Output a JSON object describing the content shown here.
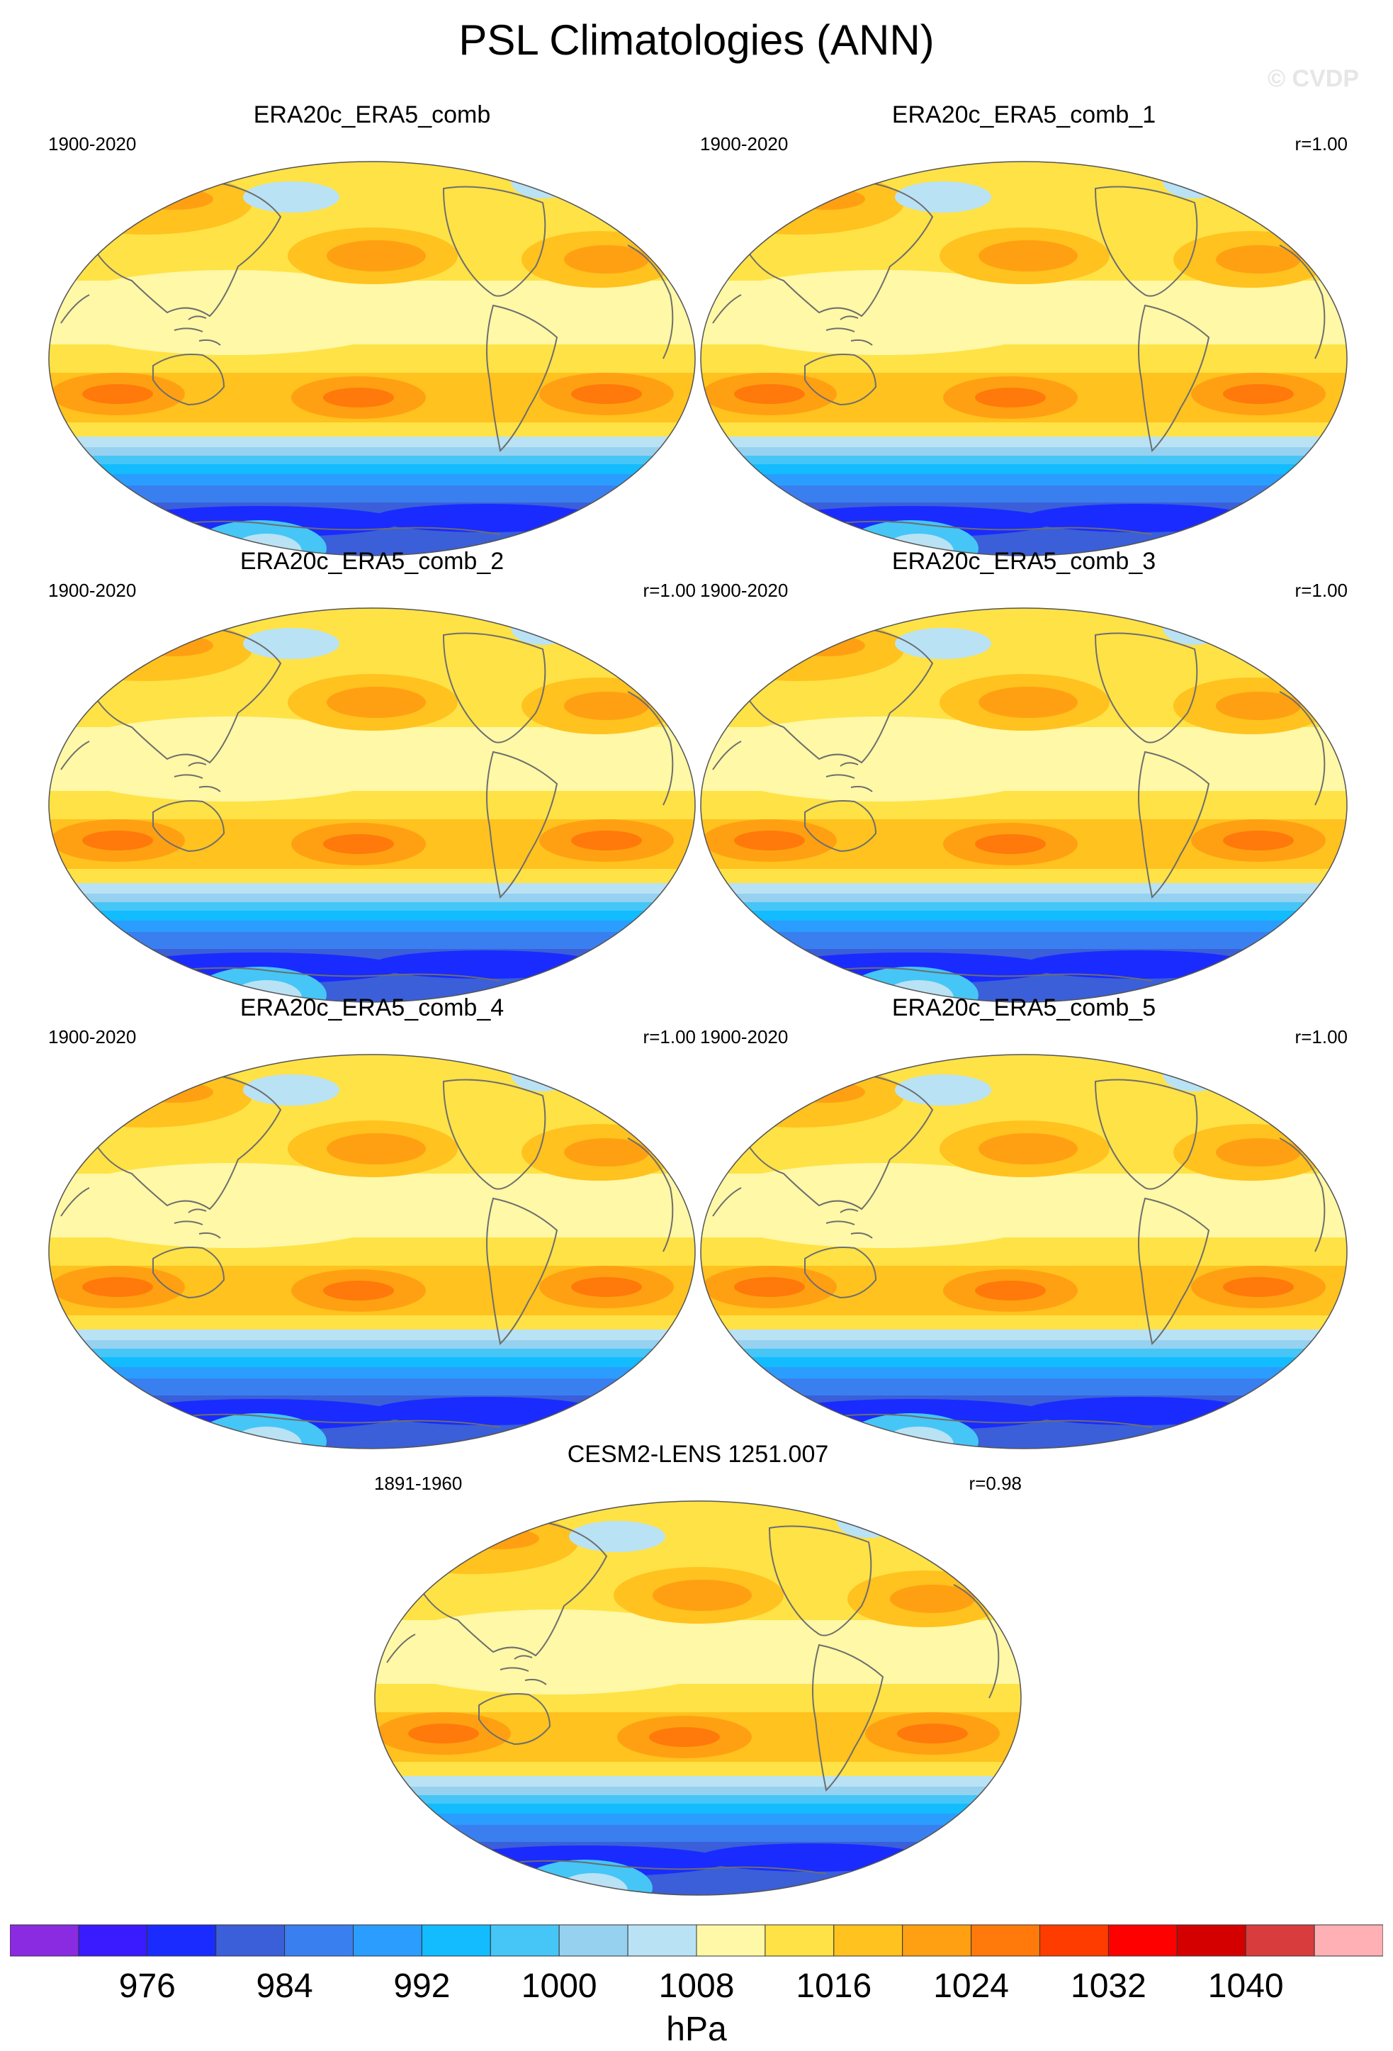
{
  "figure": {
    "title": "PSL Climatologies (ANN)",
    "credit": "© CVDP"
  },
  "panels": [
    {
      "id": "p0",
      "title": "ERA20c_ERA5_comb",
      "period": "1900-2020",
      "corr": ""
    },
    {
      "id": "p1",
      "title": "ERA20c_ERA5_comb_1",
      "period": "1900-2020",
      "corr": "r=1.00"
    },
    {
      "id": "p2",
      "title": "ERA20c_ERA5_comb_2",
      "period": "1900-2020",
      "corr": "r=1.00"
    },
    {
      "id": "p3",
      "title": "ERA20c_ERA5_comb_3",
      "period": "1900-2020",
      "corr": "r=1.00"
    },
    {
      "id": "p4",
      "title": "ERA20c_ERA5_comb_4",
      "period": "1900-2020",
      "corr": "r=1.00"
    },
    {
      "id": "p5",
      "title": "ERA20c_ERA5_comb_5",
      "period": "1900-2020",
      "corr": "r=1.00"
    },
    {
      "id": "p6",
      "title": "CESM2-LENS 1251.007",
      "period": "1891-1960",
      "corr": "r=0.98"
    }
  ],
  "colorbar": {
    "units": "hPa",
    "tick_labels": [
      "976",
      "984",
      "992",
      "1000",
      "1008",
      "1016",
      "1024",
      "1032",
      "1040"
    ],
    "colors": [
      "#8a2be2",
      "#3a1aff",
      "#1a2bff",
      "#3a5fd9",
      "#3a7ff0",
      "#2a9dff",
      "#12bcff",
      "#45c6f7",
      "#96d1f0",
      "#b9e2f5",
      "#fff8a6",
      "#ffe246",
      "#ffc21e",
      "#ffa012",
      "#ff7a0a",
      "#ff3c00",
      "#ff0000",
      "#d40000",
      "#d83c3c",
      "#ffb0b4"
    ]
  },
  "map": {
    "projection": "Robinson (Pacific-centered)",
    "field": "sea level pressure climatology",
    "features": [
      "coastlines"
    ]
  }
}
